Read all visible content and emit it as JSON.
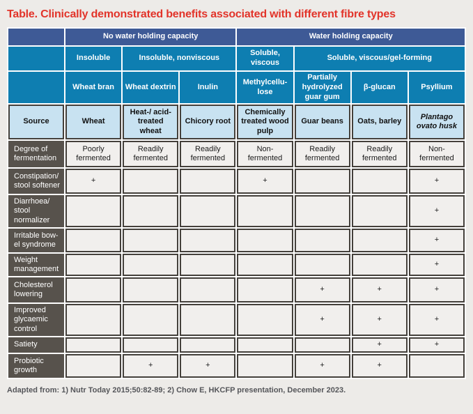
{
  "title": "Table. Clinically demonstrated benefits associated with different fibre types",
  "colors": {
    "title_red": "#e2342a",
    "header_navy": "#3e5a96",
    "header_blue": "#0e7eb1",
    "source_light_blue": "#c8e2f1",
    "row_label_brown": "#57524c",
    "cell_grey": "#f1efed",
    "border_dark": "#44403b"
  },
  "table": {
    "capacity": {
      "no_water": "No water holding capacity",
      "water": "Water holding capacity"
    },
    "solubility": {
      "insoluble": "Insoluble",
      "insoluble_nonviscous": "Insoluble, nonviscous",
      "soluble_viscous": "Soluble, viscous",
      "soluble_gel": "Soluble, viscous/gel-forming"
    },
    "fibres": [
      "Wheat bran",
      "Wheat dextrin",
      "Inulin",
      "Methylcellu-lose",
      "Partially hydrolyzed guar gum",
      "β-glucan",
      "Psyllium"
    ],
    "source": {
      "label": "Source",
      "cells": [
        "Wheat",
        "Heat-/ acid-treated wheat",
        "Chicory root",
        "Chemically treated wood pulp",
        "Guar beans",
        "Oats, barley",
        "Plantago ovato husk"
      ]
    },
    "fermentation": {
      "label": "Degree of fermentation",
      "cells": [
        "Poorly fermented",
        "Readily fermented",
        "Readily fermented",
        "Non- fermented",
        "Readily fermented",
        "Readily fermented",
        "Non- fermented"
      ]
    },
    "benefits": [
      {
        "label": "Constipation/ stool softener",
        "cells": [
          "+",
          "",
          "",
          "+",
          "",
          "",
          "+"
        ]
      },
      {
        "label": "Diarrhoea/ stool normalizer",
        "cells": [
          "",
          "",
          "",
          "",
          "",
          "",
          "+"
        ]
      },
      {
        "label": "Irritable bow-el syndrome",
        "cells": [
          "",
          "",
          "",
          "",
          "",
          "",
          "+"
        ]
      },
      {
        "label": "Weight management",
        "cells": [
          "",
          "",
          "",
          "",
          "",
          "",
          "+"
        ]
      },
      {
        "label": "Cholesterol lowering",
        "cells": [
          "",
          "",
          "",
          "",
          "+",
          "+",
          "+"
        ]
      },
      {
        "label": "Improved glycaemic control",
        "cells": [
          "",
          "",
          "",
          "",
          "+",
          "+",
          "+"
        ]
      },
      {
        "label": "Satiety",
        "cells": [
          "",
          "",
          "",
          "",
          "",
          "+",
          "+"
        ]
      },
      {
        "label": "Probiotic growth",
        "cells": [
          "",
          "+",
          "+",
          "",
          "+",
          "+",
          ""
        ]
      }
    ]
  },
  "footnote": "Adapted from: 1) Nutr Today 2015;50:82-89; 2) Chow E, HKCFP presentation, December 2023."
}
